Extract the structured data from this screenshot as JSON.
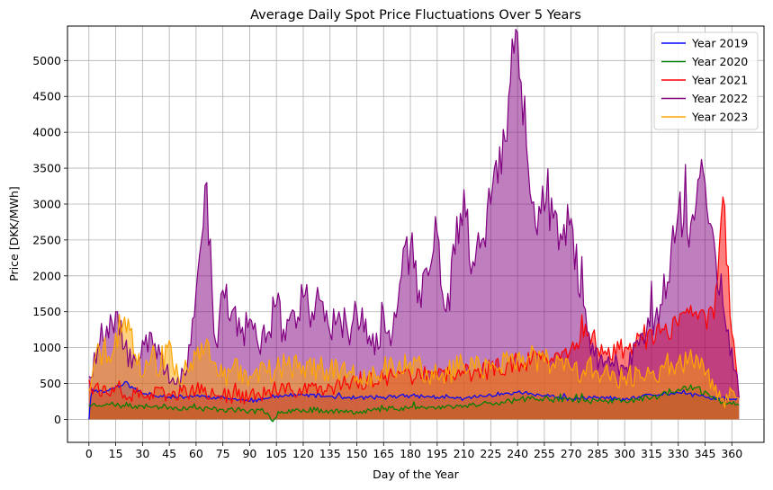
{
  "chart_data": {
    "type": "area",
    "title": "Average Daily Spot Price Fluctuations Over 5 Years",
    "xlabel": "Day of the Year",
    "ylabel": "Price [DKK/MWh]",
    "xlim": [
      -12,
      378
    ],
    "ylim": [
      -320,
      5480
    ],
    "xticks": [
      0,
      15,
      30,
      45,
      60,
      75,
      90,
      105,
      120,
      135,
      150,
      165,
      180,
      195,
      210,
      225,
      240,
      255,
      270,
      285,
      300,
      315,
      330,
      345,
      360
    ],
    "yticks": [
      0,
      500,
      1000,
      1500,
      2000,
      2500,
      3000,
      3500,
      4000,
      4500,
      5000
    ],
    "grid": true,
    "legend": "top-right",
    "fill_alpha": 0.5,
    "series": [
      {
        "name": "Year 2019",
        "color": "#0000ff",
        "anchors_x": [
          0,
          1,
          2,
          5,
          10,
          15,
          20,
          25,
          30,
          40,
          50,
          60,
          70,
          80,
          90,
          100,
          105,
          120,
          135,
          150,
          165,
          180,
          195,
          210,
          225,
          240,
          255,
          270,
          285,
          300,
          315,
          330,
          345,
          360,
          364
        ],
        "anchors_y": [
          0,
          300,
          420,
          380,
          400,
          450,
          520,
          430,
          360,
          330,
          310,
          330,
          310,
          290,
          250,
          290,
          330,
          340,
          320,
          300,
          310,
          330,
          310,
          290,
          340,
          380,
          330,
          280,
          310,
          270,
          340,
          370,
          310,
          280,
          300
        ],
        "noise_amp": 45,
        "seed": 11
      },
      {
        "name": "Year 2020",
        "color": "#008000",
        "anchors_x": [
          0,
          10,
          20,
          30,
          45,
          60,
          75,
          90,
          100,
          103,
          106,
          120,
          135,
          150,
          165,
          180,
          195,
          210,
          225,
          240,
          255,
          270,
          285,
          300,
          315,
          330,
          340,
          350,
          364
        ],
        "anchors_y": [
          200,
          220,
          180,
          190,
          170,
          150,
          140,
          120,
          90,
          -30,
          110,
          140,
          120,
          110,
          140,
          170,
          160,
          190,
          230,
          270,
          300,
          280,
          250,
          260,
          300,
          420,
          440,
          280,
          200
        ],
        "noise_amp": 70,
        "seed": 23
      },
      {
        "name": "Year 2021",
        "color": "#ff0000",
        "anchors_x": [
          0,
          10,
          20,
          30,
          45,
          60,
          75,
          90,
          105,
          120,
          135,
          150,
          165,
          180,
          195,
          210,
          225,
          240,
          255,
          270,
          280,
          290,
          300,
          310,
          320,
          330,
          340,
          345,
          350,
          355,
          360,
          364
        ],
        "anchors_y": [
          550,
          360,
          340,
          330,
          360,
          400,
          340,
          320,
          380,
          420,
          460,
          500,
          560,
          620,
          600,
          640,
          700,
          800,
          860,
          1000,
          1200,
          900,
          1000,
          1100,
          1200,
          1300,
          1500,
          1450,
          1400,
          3100,
          1200,
          300
        ],
        "noise_amp": 180,
        "seed": 37
      },
      {
        "name": "Year 2022",
        "color": "#800080",
        "anchors_x": [
          0,
          5,
          10,
          15,
          20,
          25,
          30,
          35,
          40,
          45,
          50,
          55,
          58,
          62,
          66,
          70,
          72,
          75,
          80,
          85,
          90,
          95,
          100,
          105,
          110,
          115,
          120,
          125,
          130,
          135,
          140,
          145,
          150,
          155,
          160,
          165,
          170,
          175,
          180,
          185,
          190,
          195,
          200,
          205,
          210,
          215,
          220,
          225,
          230,
          235,
          238,
          242,
          245,
          250,
          255,
          260,
          265,
          270,
          275,
          280,
          285,
          290,
          300,
          310,
          320,
          330,
          335,
          340,
          345,
          350,
          355,
          360,
          364
        ],
        "anchors_y": [
          600,
          1000,
          1300,
          1500,
          1000,
          900,
          1100,
          1200,
          900,
          500,
          600,
          700,
          1400,
          2300,
          3300,
          1200,
          1000,
          1800,
          1500,
          1200,
          1400,
          1000,
          1200,
          1600,
          1100,
          1500,
          1700,
          1500,
          1650,
          1200,
          1500,
          1200,
          1500,
          1400,
          900,
          1500,
          1200,
          2000,
          2400,
          1800,
          2000,
          2600,
          1500,
          2300,
          3200,
          2200,
          2500,
          3000,
          3800,
          4500,
          5100,
          4700,
          3800,
          2700,
          2900,
          2800,
          2500,
          2800,
          1700,
          1200,
          700,
          800,
          700,
          1200,
          1600,
          2900,
          2600,
          3000,
          3300,
          2500,
          1600,
          1000,
          300
        ],
        "noise_amp": 260,
        "seed": 53
      },
      {
        "name": "Year 2023",
        "color": "#ffa500",
        "anchors_x": [
          0,
          3,
          8,
          12,
          18,
          22,
          26,
          30,
          35,
          40,
          45,
          50,
          55,
          60,
          65,
          70,
          75,
          80,
          90,
          105,
          120,
          135,
          150,
          165,
          180,
          195,
          210,
          225,
          240,
          255,
          270,
          285,
          300,
          315,
          330,
          340,
          350,
          355,
          364
        ],
        "anchors_y": [
          400,
          800,
          1000,
          800,
          1200,
          1400,
          900,
          600,
          900,
          700,
          1100,
          600,
          700,
          900,
          1000,
          800,
          600,
          700,
          600,
          700,
          750,
          700,
          600,
          700,
          800,
          600,
          750,
          700,
          900,
          800,
          700,
          650,
          600,
          650,
          800,
          900,
          400,
          300,
          300
        ],
        "noise_amp": 230,
        "seed": 71
      }
    ]
  }
}
